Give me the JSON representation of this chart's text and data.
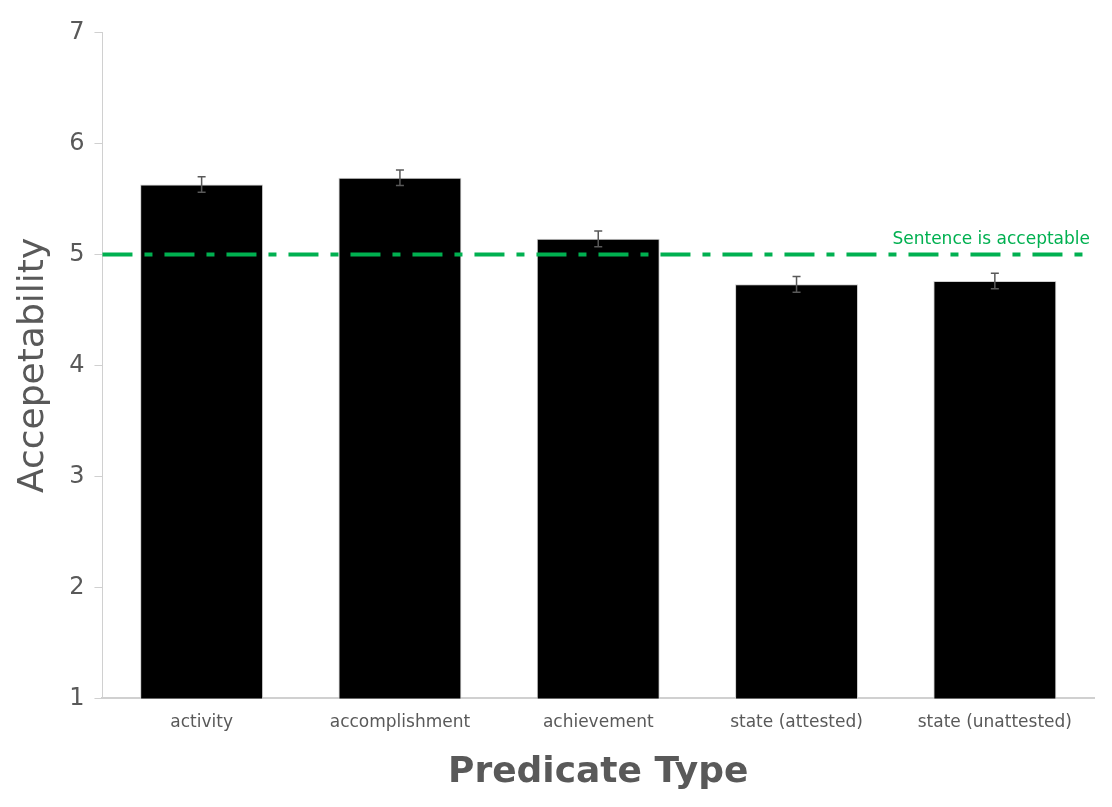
{
  "chart_data": {
    "type": "bar",
    "xlabel": "Predicate Type",
    "ylabel": "Accepetability",
    "categories": [
      "activity",
      "accomplishment",
      "achievement",
      "state (attested)",
      "state (unattested)"
    ],
    "values": [
      5.63,
      5.69,
      5.14,
      4.73,
      4.76
    ],
    "color": "#000000",
    "errors": [
      0.07,
      0.07,
      0.07,
      0.07,
      0.07
    ],
    "ylim": [
      1,
      7
    ],
    "yticks": [
      1,
      2,
      3,
      4,
      5,
      6,
      7
    ],
    "grid": false,
    "legend": false,
    "ref_lines": [
      {
        "axis": "y",
        "value": 5,
        "label": "Sentence is acceptable",
        "color": "#00b050",
        "line_style": "dashdot"
      }
    ]
  }
}
